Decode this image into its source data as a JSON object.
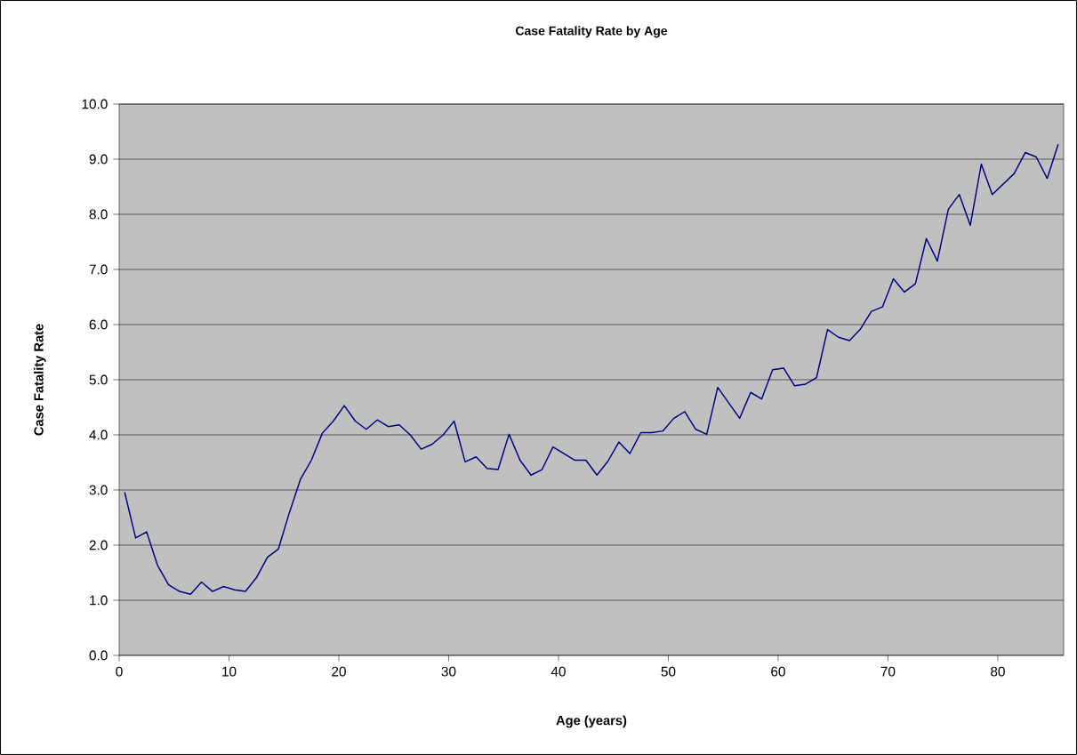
{
  "chart_data": {
    "type": "line",
    "title": "Case Fatality Rate by Age",
    "xlabel": "Age (years)",
    "ylabel": "Case Fatality Rate",
    "x": [
      0.5,
      1.5,
      2.5,
      3.5,
      4.5,
      5.5,
      6.5,
      7.5,
      8.5,
      9.5,
      10.5,
      11.5,
      12.5,
      13.5,
      14.5,
      15.5,
      16.5,
      17.5,
      18.5,
      19.5,
      20.5,
      21.5,
      22.5,
      23.5,
      24.5,
      25.5,
      26.5,
      27.5,
      28.5,
      29.5,
      30.5,
      31.5,
      32.5,
      33.5,
      34.5,
      35.5,
      36.5,
      37.5,
      38.5,
      39.5,
      40.5,
      41.5,
      42.5,
      43.5,
      44.5,
      45.5,
      46.5,
      47.5,
      48.5,
      49.5,
      50.5,
      51.5,
      52.5,
      53.5,
      54.5,
      55.5,
      56.5,
      57.5,
      58.5,
      59.5,
      60.5,
      61.5,
      62.5,
      63.5,
      64.5,
      65.5,
      66.5,
      67.5,
      68.5,
      69.5,
      70.5,
      71.5,
      72.5,
      73.5,
      74.5,
      75.5,
      76.5,
      77.5,
      78.5,
      79.5,
      80.5,
      81.5,
      82.5,
      83.5,
      84.5,
      85.5
    ],
    "series": [
      {
        "color": "#000080",
        "values": [
          2.96,
          2.13,
          2.24,
          1.63,
          1.28,
          1.16,
          1.11,
          1.33,
          1.16,
          1.25,
          1.19,
          1.16,
          1.41,
          1.78,
          1.93,
          2.59,
          3.19,
          3.54,
          4.03,
          4.25,
          4.53,
          4.25,
          4.1,
          4.27,
          4.15,
          4.18,
          4.0,
          3.74,
          3.83,
          4.0,
          4.25,
          3.51,
          3.6,
          3.39,
          3.37,
          4.01,
          3.54,
          3.27,
          3.37,
          3.78,
          3.66,
          3.54,
          3.54,
          3.27,
          3.52,
          3.87,
          3.66,
          4.04,
          4.04,
          4.07,
          4.3,
          4.42,
          4.1,
          4.01,
          4.86,
          4.58,
          4.3,
          4.77,
          4.65,
          5.18,
          5.21,
          4.89,
          4.92,
          5.04,
          5.91,
          5.77,
          5.71,
          5.92,
          6.24,
          6.32,
          6.83,
          6.59,
          6.74,
          7.56,
          7.15,
          8.09,
          8.36,
          7.8,
          8.91,
          8.36,
          8.55,
          8.74,
          9.12,
          9.04,
          8.65,
          9.27
        ]
      }
    ],
    "xlim": [
      0,
      86
    ],
    "ylim": [
      0,
      10
    ],
    "xticks": [
      0,
      10,
      20,
      30,
      40,
      50,
      60,
      70,
      80
    ],
    "yticks": [
      {
        "value": 0,
        "label": "0.0"
      },
      {
        "value": 1,
        "label": "1.0"
      },
      {
        "value": 2,
        "label": "2.0"
      },
      {
        "value": 3,
        "label": "3.0"
      },
      {
        "value": 4,
        "label": "4.0"
      },
      {
        "value": 5,
        "label": "5.0"
      },
      {
        "value": 6,
        "label": "6.0"
      },
      {
        "value": 7,
        "label": "7.0"
      },
      {
        "value": 8,
        "label": "8.0"
      },
      {
        "value": 9,
        "label": "9.0"
      },
      {
        "value": 10,
        "label": "10.0"
      }
    ],
    "grid": "y",
    "marker": "none",
    "line_style": "solid"
  }
}
